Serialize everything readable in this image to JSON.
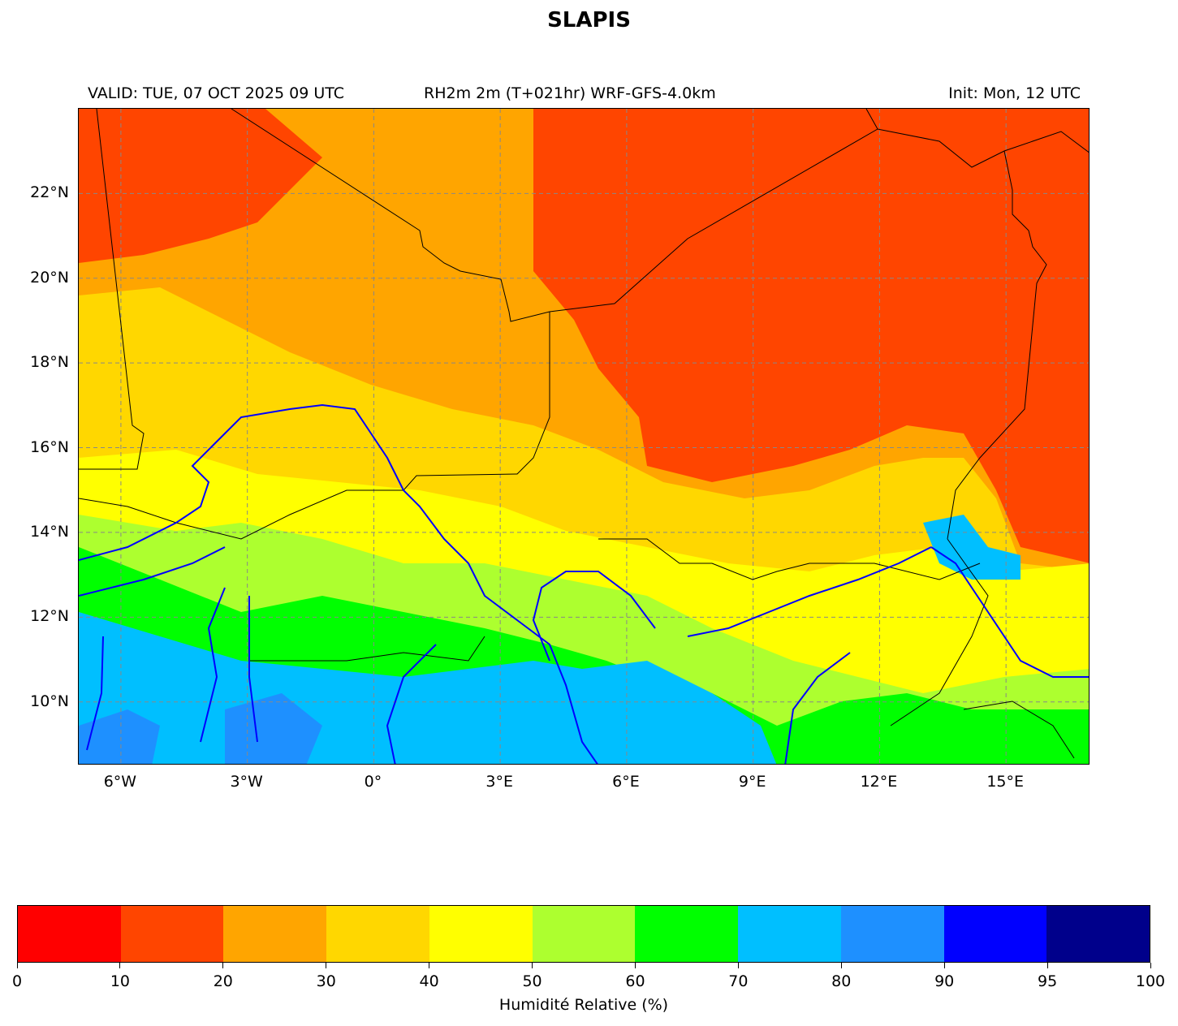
{
  "title": "SLAPIS",
  "header": {
    "valid": "VALID: TUE, 07 OCT 2025 09 UTC",
    "product": "RH2m 2m (T+021hr) WRF-GFS-4.0km",
    "init": "Init: Mon, 12 UTC"
  },
  "map": {
    "lon_range": [
      -7,
      17
    ],
    "lat_range": [
      8.5,
      24
    ],
    "lat_ticks": [
      {
        "value": 22,
        "label": "22°N"
      },
      {
        "value": 20,
        "label": "20°N"
      },
      {
        "value": 18,
        "label": "18°N"
      },
      {
        "value": 16,
        "label": "16°N"
      },
      {
        "value": 14,
        "label": "14°N"
      },
      {
        "value": 12,
        "label": "12°N"
      },
      {
        "value": 10,
        "label": "10°N"
      }
    ],
    "lon_ticks": [
      {
        "value": -6,
        "label": "6°W"
      },
      {
        "value": -3,
        "label": "3°W"
      },
      {
        "value": 0,
        "label": "0°"
      },
      {
        "value": 3,
        "label": "3°E"
      },
      {
        "value": 6,
        "label": "6°E"
      },
      {
        "value": 9,
        "label": "9°E"
      },
      {
        "value": 12,
        "label": "12°E"
      },
      {
        "value": 15,
        "label": "15°E"
      }
    ],
    "gridlines": true,
    "coastline_color": "#000000",
    "river_color": "#0000ff"
  },
  "colorbar": {
    "title": "Humidité Relative (%)",
    "bounds": [
      0,
      10,
      20,
      30,
      40,
      50,
      60,
      70,
      80,
      90,
      95,
      100
    ],
    "labels": [
      "0",
      "10",
      "20",
      "30",
      "40",
      "50",
      "60",
      "70",
      "80",
      "90",
      "95",
      "100"
    ],
    "colors": [
      "#ff0000",
      "#ff4500",
      "#ffa500",
      "#ffd700",
      "#ffff00",
      "#adff2f",
      "#00ff00",
      "#00bfff",
      "#1e90ff",
      "#0000ff",
      "#00008b"
    ]
  }
}
